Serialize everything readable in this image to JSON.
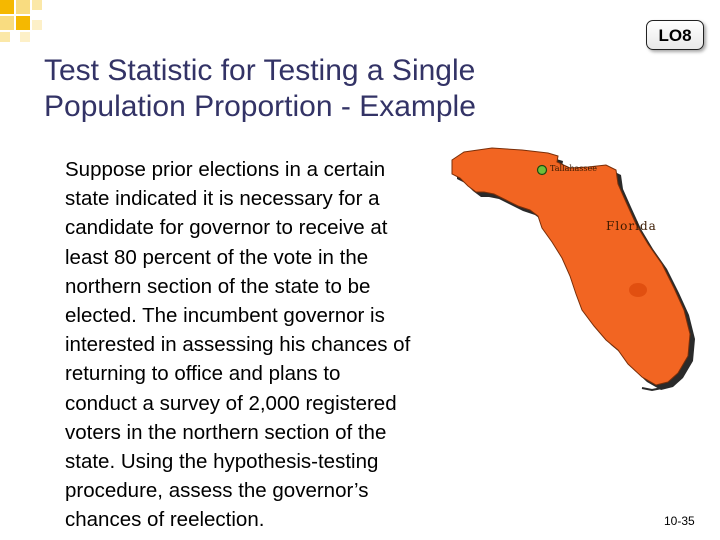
{
  "badge": {
    "label": "LO8"
  },
  "title": {
    "line1": "Test Statistic for Testing a Single",
    "line2": "Population Proportion - Example"
  },
  "body": {
    "lines": [
      "Suppose prior elections in a certain",
      "state indicated it is necessary for a",
      "candidate for governor to receive at",
      "least 80 percent of the vote in the",
      "northern section of the state to be",
      "elected. The incumbent governor is",
      "interested in assessing his chances of",
      "returning to office and plans to",
      "conduct a survey of 2,000 registered",
      "voters in the northern section of the",
      "state. Using the hypothesis-testing",
      "procedure, assess the governor’s",
      "chances of reelection."
    ]
  },
  "map": {
    "city_label": "Tallahassee",
    "state_label": "Florida",
    "fill_color": "#f26522",
    "shadow_color": "#2a2a2a",
    "icon": "florida-map"
  },
  "footer": {
    "page_number": "10-35"
  },
  "colors": {
    "title": "#333366",
    "corner_accent": "#f5b800"
  }
}
